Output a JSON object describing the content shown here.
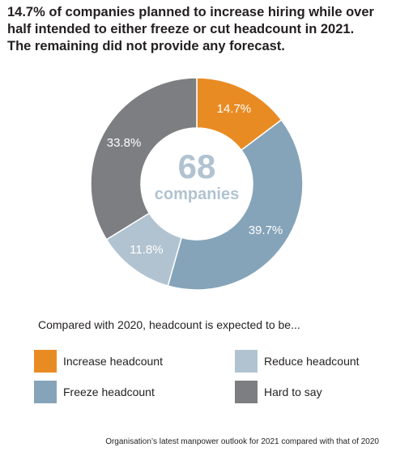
{
  "title_lines": [
    "14.7% of companies planned to increase hiring while over",
    "half intended to either freeze or cut headcount in 2021.",
    "The remaining did not provide any forecast."
  ],
  "center": {
    "number": "68",
    "unit": "companies"
  },
  "subtitle": "Compared with 2020, headcount is expected to be...",
  "footnote": "Organisation’s latest manpower outlook for 2021 compared with that of 2020",
  "chart_data": {
    "type": "pie",
    "donut": true,
    "categories": [
      "Increase headcount",
      "Freeze headcount",
      "Reduce headcount",
      "Hard to say"
    ],
    "values": [
      14.7,
      39.7,
      11.8,
      33.8
    ],
    "value_labels": [
      "14.7%",
      "39.7%",
      "11.8%",
      "33.8%"
    ],
    "colors": [
      "#e98b23",
      "#85a4b9",
      "#b1c3d1",
      "#7d7e82"
    ],
    "total_count": 68,
    "legend_placement": "bottom"
  },
  "legend": [
    {
      "label": "Increase headcount",
      "color": "#e98b23"
    },
    {
      "label": "Reduce headcount",
      "color": "#b1c3d1"
    },
    {
      "label": "Freeze headcount",
      "color": "#85a4b9"
    },
    {
      "label": "Hard to say",
      "color": "#7d7e82"
    }
  ]
}
